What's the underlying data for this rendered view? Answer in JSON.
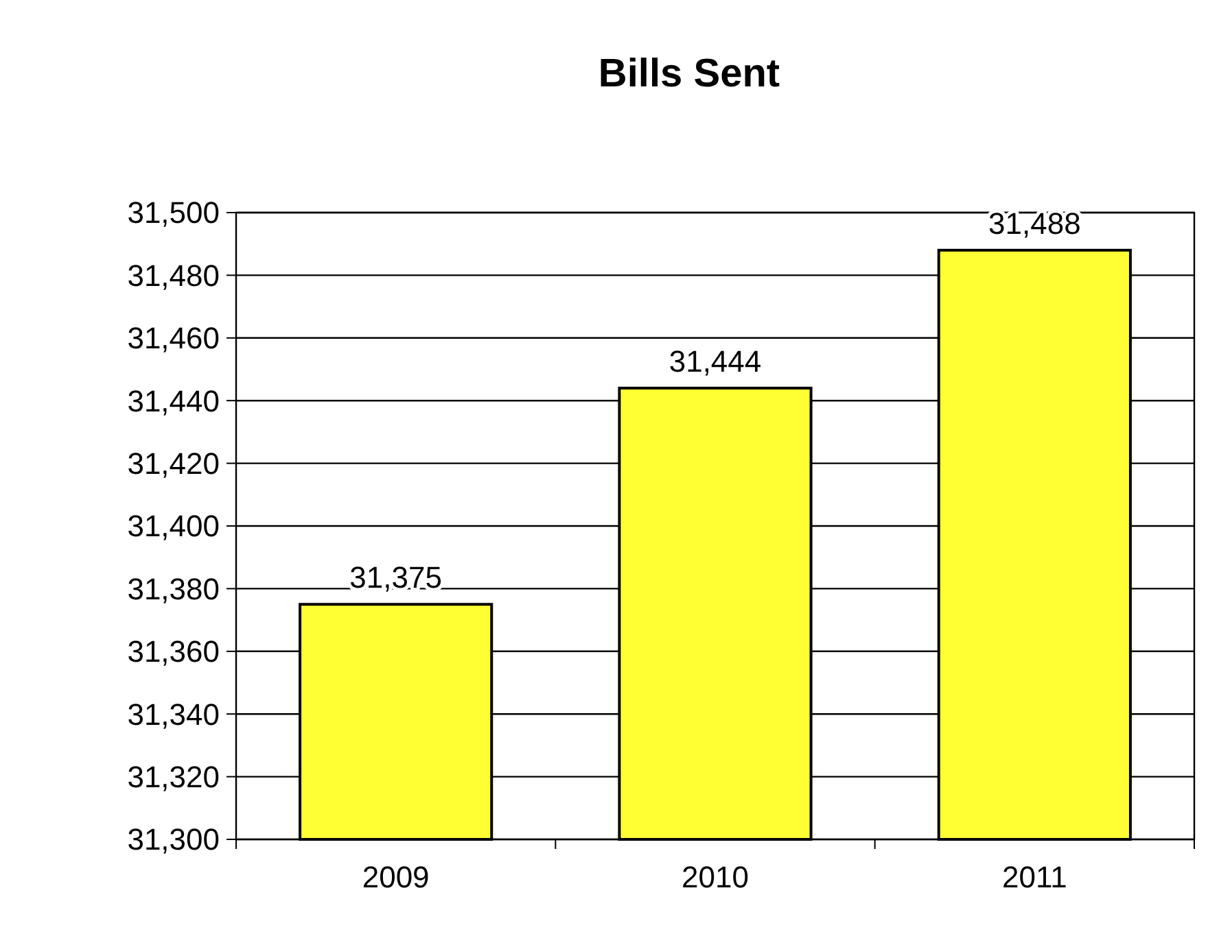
{
  "chart_data": {
    "type": "bar",
    "title": "Bills Sent",
    "categories": [
      "2009",
      "2010",
      "2011"
    ],
    "values": [
      31375,
      31444,
      31488
    ],
    "color": "#ffff33",
    "ylim": [
      31300,
      31500
    ],
    "yticks": [
      {
        "value": 31300,
        "label": "31,300"
      },
      {
        "value": 31320,
        "label": "31,320"
      },
      {
        "value": 31340,
        "label": "31,340"
      },
      {
        "value": 31360,
        "label": "31,360"
      },
      {
        "value": 31380,
        "label": "31,380"
      },
      {
        "value": 31400,
        "label": "31,400"
      },
      {
        "value": 31420,
        "label": "31,420"
      },
      {
        "value": 31440,
        "label": "31,440"
      },
      {
        "value": 31460,
        "label": "31,460"
      },
      {
        "value": 31480,
        "label": "31,480"
      },
      {
        "value": 31500,
        "label": "31,500"
      }
    ],
    "value_labels": [
      "31,375",
      "31,444",
      "31,488"
    ],
    "grid": "y"
  }
}
